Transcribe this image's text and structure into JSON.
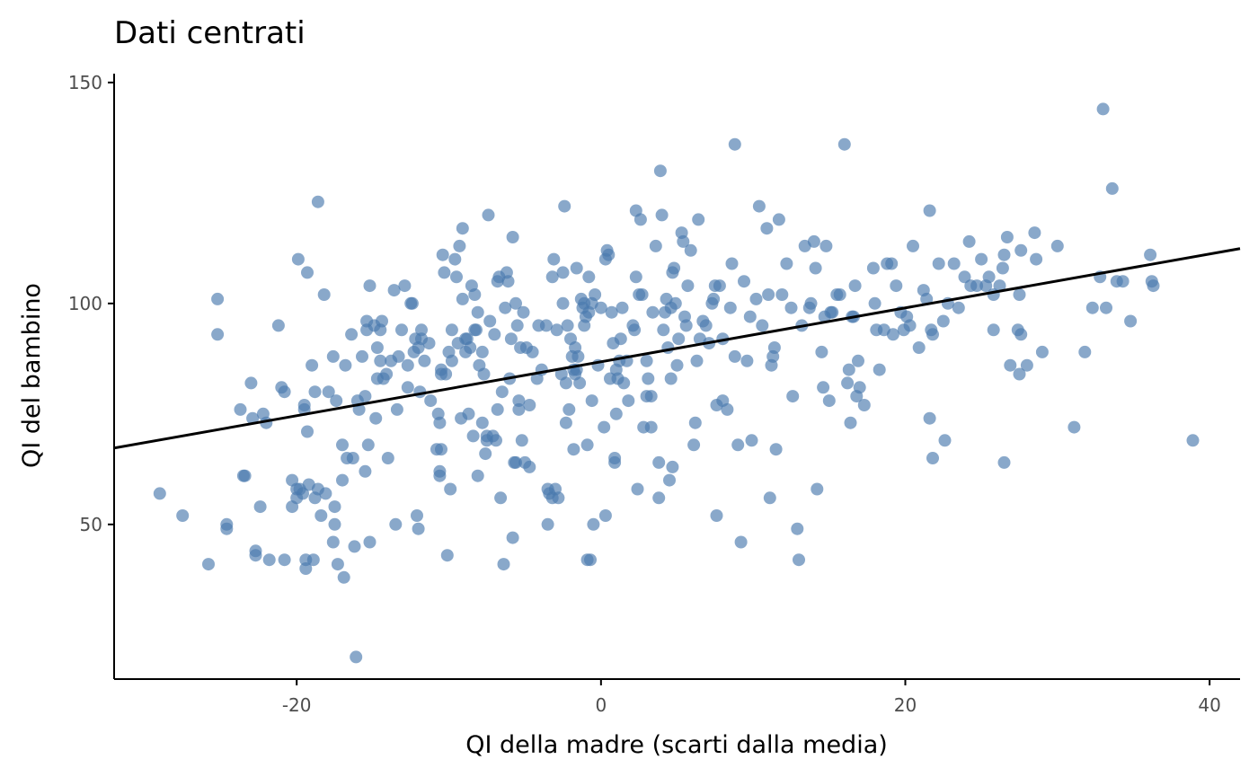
{
  "chart_data": {
    "type": "scatter",
    "title": "Dati centrati",
    "xlabel": "QI della madre (scarti dalla media)",
    "ylabel": "QI del bambino",
    "xlim": [
      -32,
      42
    ],
    "ylim": [
      15,
      152
    ],
    "xticks": [
      -20,
      0,
      20,
      40
    ],
    "yticks": [
      50,
      100,
      150
    ],
    "grid": false,
    "legend": "none",
    "colors": {
      "points": "#4a7aad",
      "line": "#000000",
      "axis": "#000000",
      "tick_label": "#4d4d4d"
    },
    "point_opacity": 0.65,
    "regression_line": {
      "intercept": 86.8,
      "slope": 0.61
    },
    "points": [
      [
        -29,
        57
      ],
      [
        -27.5,
        52
      ],
      [
        -25.8,
        41
      ],
      [
        -25.2,
        101
      ],
      [
        -25.2,
        93
      ],
      [
        -24.6,
        50
      ],
      [
        -24.6,
        49
      ],
      [
        -23.7,
        76
      ],
      [
        -23.5,
        61
      ],
      [
        -23.4,
        61
      ],
      [
        -23,
        82
      ],
      [
        -22.9,
        74
      ],
      [
        -22.7,
        44
      ],
      [
        -22.7,
        43
      ],
      [
        -22.4,
        54
      ],
      [
        -22.2,
        75
      ],
      [
        -22,
        73
      ],
      [
        -21.8,
        42
      ],
      [
        -21.2,
        95
      ],
      [
        -21,
        81
      ],
      [
        -20.8,
        80
      ],
      [
        -20.8,
        42
      ],
      [
        -20.3,
        60
      ],
      [
        -20.3,
        54
      ],
      [
        -20,
        58
      ],
      [
        -20,
        56
      ],
      [
        -19.9,
        110
      ],
      [
        -19.8,
        58
      ],
      [
        -19.6,
        57
      ],
      [
        -19.5,
        77
      ],
      [
        -19.5,
        76
      ],
      [
        -19.4,
        42
      ],
      [
        -19.4,
        40
      ],
      [
        -19.3,
        107
      ],
      [
        -19.3,
        71
      ],
      [
        -19.2,
        59
      ],
      [
        -19,
        86
      ],
      [
        -18.9,
        42
      ],
      [
        -18.8,
        80
      ],
      [
        -18.8,
        56
      ],
      [
        -18.6,
        123
      ],
      [
        -18.6,
        58
      ],
      [
        -18.4,
        52
      ],
      [
        -18.2,
        102
      ],
      [
        -18.1,
        57
      ],
      [
        -17.9,
        80
      ],
      [
        -17.6,
        88
      ],
      [
        -17.6,
        46
      ],
      [
        -17.5,
        54
      ],
      [
        -17.5,
        50
      ],
      [
        -17.4,
        78
      ],
      [
        -17.3,
        41
      ],
      [
        -17,
        68
      ],
      [
        -17,
        60
      ],
      [
        -16.9,
        38
      ],
      [
        -16.8,
        86
      ],
      [
        -16.7,
        65
      ],
      [
        -16.4,
        93
      ],
      [
        -16.3,
        65
      ],
      [
        -16.2,
        45
      ],
      [
        -16.1,
        20
      ],
      [
        -16,
        78
      ],
      [
        -15.9,
        76
      ],
      [
        -15.7,
        88
      ],
      [
        -15.5,
        79
      ],
      [
        -15.5,
        62
      ],
      [
        -15.4,
        96
      ],
      [
        -15.4,
        94
      ],
      [
        -15.3,
        68
      ],
      [
        -15.2,
        46
      ],
      [
        -15.2,
        104
      ],
      [
        -14.9,
        95
      ],
      [
        -14.8,
        74
      ],
      [
        -14.7,
        90
      ],
      [
        -14.7,
        83
      ],
      [
        -14.5,
        87
      ],
      [
        -14.5,
        94
      ],
      [
        -14.4,
        96
      ],
      [
        -14.3,
        83
      ],
      [
        -14.1,
        84
      ],
      [
        -14,
        65
      ],
      [
        -13.8,
        87
      ],
      [
        -13.6,
        103
      ],
      [
        -13.5,
        50
      ],
      [
        -13.4,
        76
      ],
      [
        -13.3,
        88
      ],
      [
        -13.1,
        94
      ],
      [
        -12.9,
        104
      ],
      [
        -12.7,
        86
      ],
      [
        -12.7,
        81
      ],
      [
        -12.5,
        100
      ],
      [
        -12.4,
        100
      ],
      [
        -12.3,
        89
      ],
      [
        -12.2,
        92
      ],
      [
        -12.1,
        52
      ],
      [
        -12,
        90
      ],
      [
        -12,
        49
      ],
      [
        -11.9,
        80
      ],
      [
        -11.8,
        94
      ],
      [
        -11.8,
        92
      ],
      [
        -11.6,
        87
      ],
      [
        -11.3,
        91
      ],
      [
        -11.2,
        78
      ],
      [
        -10.8,
        67
      ],
      [
        -10.7,
        75
      ],
      [
        -10.6,
        73
      ],
      [
        -10.6,
        62
      ],
      [
        -10.6,
        61
      ],
      [
        -10.5,
        85
      ],
      [
        -10.5,
        84
      ],
      [
        -10.5,
        67
      ],
      [
        -10.4,
        111
      ],
      [
        -10.3,
        107
      ],
      [
        -10.2,
        84
      ],
      [
        -10.1,
        43
      ],
      [
        -10,
        89
      ],
      [
        -9.9,
        58
      ],
      [
        -9.8,
        87
      ],
      [
        -9.8,
        94
      ],
      [
        -9.6,
        110
      ],
      [
        -9.5,
        106
      ],
      [
        -9.4,
        91
      ],
      [
        -9.3,
        113
      ],
      [
        -9.2,
        74
      ],
      [
        -9.1,
        117
      ],
      [
        -9.1,
        101
      ],
      [
        -8.9,
        92
      ],
      [
        -8.9,
        89
      ],
      [
        -8.8,
        92
      ],
      [
        -8.7,
        75
      ],
      [
        -8.6,
        90
      ],
      [
        -8.5,
        104
      ],
      [
        -8.4,
        70
      ],
      [
        -8.3,
        102
      ],
      [
        -8.3,
        94
      ],
      [
        -8.2,
        94
      ],
      [
        -8.1,
        61
      ],
      [
        -8.1,
        98
      ],
      [
        -8.0,
        86
      ],
      [
        -7.8,
        89
      ],
      [
        -7.8,
        73
      ],
      [
        -7.7,
        84
      ],
      [
        -7.6,
        66
      ],
      [
        -7.5,
        69
      ],
      [
        -7.5,
        70
      ],
      [
        -7.4,
        120
      ],
      [
        -7.3,
        96
      ],
      [
        -7.1,
        70
      ],
      [
        -7.0,
        93
      ],
      [
        -6.9,
        69
      ],
      [
        -6.8,
        76
      ],
      [
        -6.8,
        105
      ],
      [
        -6.7,
        106
      ],
      [
        -6.6,
        56
      ],
      [
        -6.5,
        80
      ],
      [
        -6.4,
        41
      ],
      [
        -6.3,
        99
      ],
      [
        -6.2,
        107
      ],
      [
        -6.1,
        105
      ],
      [
        -6,
        83
      ],
      [
        -5.9,
        92
      ],
      [
        -5.8,
        115
      ],
      [
        -5.8,
        47
      ],
      [
        -5.7,
        64
      ],
      [
        -5.6,
        64
      ],
      [
        -5.6,
        100
      ],
      [
        -5.5,
        95
      ],
      [
        -5.4,
        76
      ],
      [
        -5.4,
        78
      ],
      [
        -5.3,
        90
      ],
      [
        -5.2,
        69
      ],
      [
        -5.1,
        98
      ],
      [
        -5.0,
        64
      ],
      [
        -4.9,
        90
      ],
      [
        -4.7,
        63
      ],
      [
        -4.7,
        77
      ],
      [
        -4.5,
        89
      ],
      [
        -4.2,
        83
      ],
      [
        -4.1,
        95
      ],
      [
        -3.9,
        85
      ],
      [
        -3.6,
        95
      ],
      [
        -3.5,
        58
      ],
      [
        -3.5,
        50
      ],
      [
        -3.4,
        57
      ],
      [
        -3.2,
        106
      ],
      [
        -3.2,
        56
      ],
      [
        -3.1,
        110
      ],
      [
        -3.0,
        58
      ],
      [
        -2.9,
        94
      ],
      [
        -2.8,
        56
      ],
      [
        -2.6,
        84
      ],
      [
        -2.5,
        107
      ],
      [
        -2.5,
        100
      ],
      [
        -2.4,
        122
      ],
      [
        -2.3,
        82
      ],
      [
        -2.3,
        73
      ],
      [
        -2.2,
        95
      ],
      [
        -2.1,
        76
      ],
      [
        -2,
        92
      ],
      [
        -1.9,
        88
      ],
      [
        -1.8,
        67
      ],
      [
        -1.8,
        85
      ],
      [
        -1.7,
        84
      ],
      [
        -1.7,
        90
      ],
      [
        -1.6,
        108
      ],
      [
        -1.6,
        85
      ],
      [
        -1.5,
        88
      ],
      [
        -1.4,
        82
      ],
      [
        -1.3,
        101
      ],
      [
        -1.2,
        99
      ],
      [
        -1.1,
        95
      ],
      [
        -1.1,
        100
      ],
      [
        -1,
        97
      ],
      [
        -0.9,
        68
      ],
      [
        -0.9,
        42
      ],
      [
        -0.8,
        106
      ],
      [
        -0.8,
        98
      ],
      [
        -0.7,
        42
      ],
      [
        -0.6,
        100
      ],
      [
        -0.6,
        78
      ],
      [
        -0.5,
        50
      ],
      [
        -0.4,
        102
      ],
      [
        -0.2,
        86
      ],
      [
        0,
        99
      ],
      [
        0.2,
        72
      ],
      [
        0.3,
        52
      ],
      [
        0.3,
        110
      ],
      [
        0.4,
        112
      ],
      [
        0.5,
        111
      ],
      [
        0.6,
        83
      ],
      [
        0.7,
        98
      ],
      [
        0.8,
        91
      ],
      [
        0.9,
        64
      ],
      [
        0.9,
        65
      ],
      [
        1,
        75
      ],
      [
        1,
        85
      ],
      [
        1.1,
        83
      ],
      [
        1.2,
        87
      ],
      [
        1.3,
        92
      ],
      [
        1.4,
        99
      ],
      [
        1.5,
        82
      ],
      [
        1.7,
        87
      ],
      [
        1.8,
        78
      ],
      [
        2.1,
        95
      ],
      [
        2.2,
        94
      ],
      [
        2.3,
        106
      ],
      [
        2.3,
        121
      ],
      [
        2.4,
        58
      ],
      [
        2.5,
        102
      ],
      [
        2.6,
        119
      ],
      [
        2.7,
        102
      ],
      [
        2.8,
        72
      ],
      [
        3.0,
        87
      ],
      [
        3.0,
        79
      ],
      [
        3.1,
        83
      ],
      [
        3.3,
        79
      ],
      [
        3.3,
        72
      ],
      [
        3.4,
        98
      ],
      [
        3.6,
        113
      ],
      [
        3.8,
        64
      ],
      [
        3.8,
        56
      ],
      [
        3.9,
        130
      ],
      [
        4.0,
        120
      ],
      [
        4.1,
        94
      ],
      [
        4.2,
        98
      ],
      [
        4.3,
        101
      ],
      [
        4.4,
        90
      ],
      [
        4.5,
        60
      ],
      [
        4.6,
        99
      ],
      [
        4.6,
        83
      ],
      [
        4.7,
        63
      ],
      [
        4.7,
        107
      ],
      [
        4.8,
        108
      ],
      [
        4.9,
        100
      ],
      [
        5.0,
        86
      ],
      [
        5.1,
        92
      ],
      [
        5.3,
        116
      ],
      [
        5.4,
        114
      ],
      [
        5.5,
        97
      ],
      [
        5.6,
        95
      ],
      [
        5.7,
        104
      ],
      [
        5.9,
        112
      ],
      [
        6.1,
        68
      ],
      [
        6.2,
        73
      ],
      [
        6.3,
        87
      ],
      [
        6.4,
        119
      ],
      [
        6.5,
        92
      ],
      [
        6.7,
        96
      ],
      [
        6.9,
        95
      ],
      [
        7.1,
        91
      ],
      [
        7.3,
        100
      ],
      [
        7.4,
        101
      ],
      [
        7.5,
        104
      ],
      [
        7.6,
        77
      ],
      [
        7.6,
        52
      ],
      [
        7.8,
        104
      ],
      [
        8.0,
        78
      ],
      [
        8.0,
        92
      ],
      [
        8.3,
        76
      ],
      [
        8.5,
        99
      ],
      [
        8.6,
        109
      ],
      [
        8.8,
        88
      ],
      [
        8.8,
        136
      ],
      [
        9.0,
        68
      ],
      [
        9.2,
        46
      ],
      [
        9.4,
        105
      ],
      [
        9.6,
        87
      ],
      [
        9.8,
        97
      ],
      [
        9.9,
        69
      ],
      [
        10.2,
        101
      ],
      [
        10.4,
        122
      ],
      [
        10.6,
        95
      ],
      [
        10.9,
        117
      ],
      [
        11.0,
        102
      ],
      [
        11.1,
        56
      ],
      [
        11.2,
        86
      ],
      [
        11.3,
        88
      ],
      [
        11.4,
        90
      ],
      [
        11.5,
        67
      ],
      [
        11.7,
        119
      ],
      [
        11.9,
        102
      ],
      [
        12.2,
        109
      ],
      [
        12.5,
        99
      ],
      [
        12.6,
        79
      ],
      [
        12.9,
        49
      ],
      [
        13.0,
        42
      ],
      [
        13.2,
        95
      ],
      [
        13.4,
        113
      ],
      [
        13.7,
        99
      ],
      [
        13.8,
        100
      ],
      [
        14.0,
        114
      ],
      [
        14.1,
        108
      ],
      [
        14.2,
        58
      ],
      [
        14.5,
        89
      ],
      [
        14.6,
        81
      ],
      [
        14.7,
        97
      ],
      [
        14.8,
        113
      ],
      [
        15.0,
        78
      ],
      [
        15.1,
        98
      ],
      [
        15.2,
        98
      ],
      [
        15.5,
        102
      ],
      [
        15.7,
        102
      ],
      [
        16.0,
        136
      ],
      [
        16.2,
        82
      ],
      [
        16.3,
        85
      ],
      [
        16.4,
        73
      ],
      [
        16.5,
        97
      ],
      [
        16.6,
        97
      ],
      [
        16.7,
        104
      ],
      [
        16.8,
        79
      ],
      [
        16.9,
        87
      ],
      [
        17.0,
        81
      ],
      [
        17.3,
        77
      ],
      [
        17.9,
        108
      ],
      [
        18.0,
        100
      ],
      [
        18.1,
        94
      ],
      [
        18.3,
        85
      ],
      [
        18.6,
        94
      ],
      [
        18.8,
        109
      ],
      [
        19.1,
        109
      ],
      [
        19.2,
        93
      ],
      [
        19.4,
        104
      ],
      [
        19.7,
        98
      ],
      [
        19.9,
        94
      ],
      [
        20.1,
        97
      ],
      [
        20.3,
        95
      ],
      [
        20.5,
        113
      ],
      [
        20.9,
        90
      ],
      [
        21.2,
        103
      ],
      [
        21.4,
        101
      ],
      [
        21.6,
        121
      ],
      [
        21.6,
        74
      ],
      [
        21.7,
        94
      ],
      [
        21.8,
        93
      ],
      [
        21.8,
        65
      ],
      [
        22.2,
        109
      ],
      [
        22.5,
        96
      ],
      [
        22.6,
        69
      ],
      [
        22.8,
        100
      ],
      [
        23.2,
        109
      ],
      [
        23.5,
        99
      ],
      [
        23.9,
        106
      ],
      [
        24.2,
        114
      ],
      [
        24.3,
        104
      ],
      [
        24.7,
        104
      ],
      [
        25.0,
        110
      ],
      [
        25.3,
        104
      ],
      [
        25.5,
        106
      ],
      [
        25.8,
        102
      ],
      [
        25.8,
        94
      ],
      [
        26.2,
        104
      ],
      [
        26.4,
        108
      ],
      [
        26.5,
        64
      ],
      [
        26.5,
        111
      ],
      [
        26.7,
        115
      ],
      [
        26.9,
        86
      ],
      [
        27.4,
        94
      ],
      [
        27.5,
        84
      ],
      [
        27.5,
        102
      ],
      [
        27.6,
        93
      ],
      [
        27.6,
        112
      ],
      [
        28.0,
        86
      ],
      [
        28.5,
        116
      ],
      [
        28.6,
        110
      ],
      [
        29.0,
        89
      ],
      [
        30.0,
        113
      ],
      [
        31.1,
        72
      ],
      [
        31.8,
        89
      ],
      [
        32.3,
        99
      ],
      [
        32.8,
        106
      ],
      [
        33.0,
        144
      ],
      [
        33.2,
        99
      ],
      [
        33.6,
        126
      ],
      [
        33.9,
        105
      ],
      [
        34.3,
        105
      ],
      [
        34.8,
        96
      ],
      [
        36.1,
        111
      ],
      [
        36.2,
        105
      ],
      [
        36.3,
        104
      ],
      [
        38.9,
        69
      ]
    ]
  }
}
